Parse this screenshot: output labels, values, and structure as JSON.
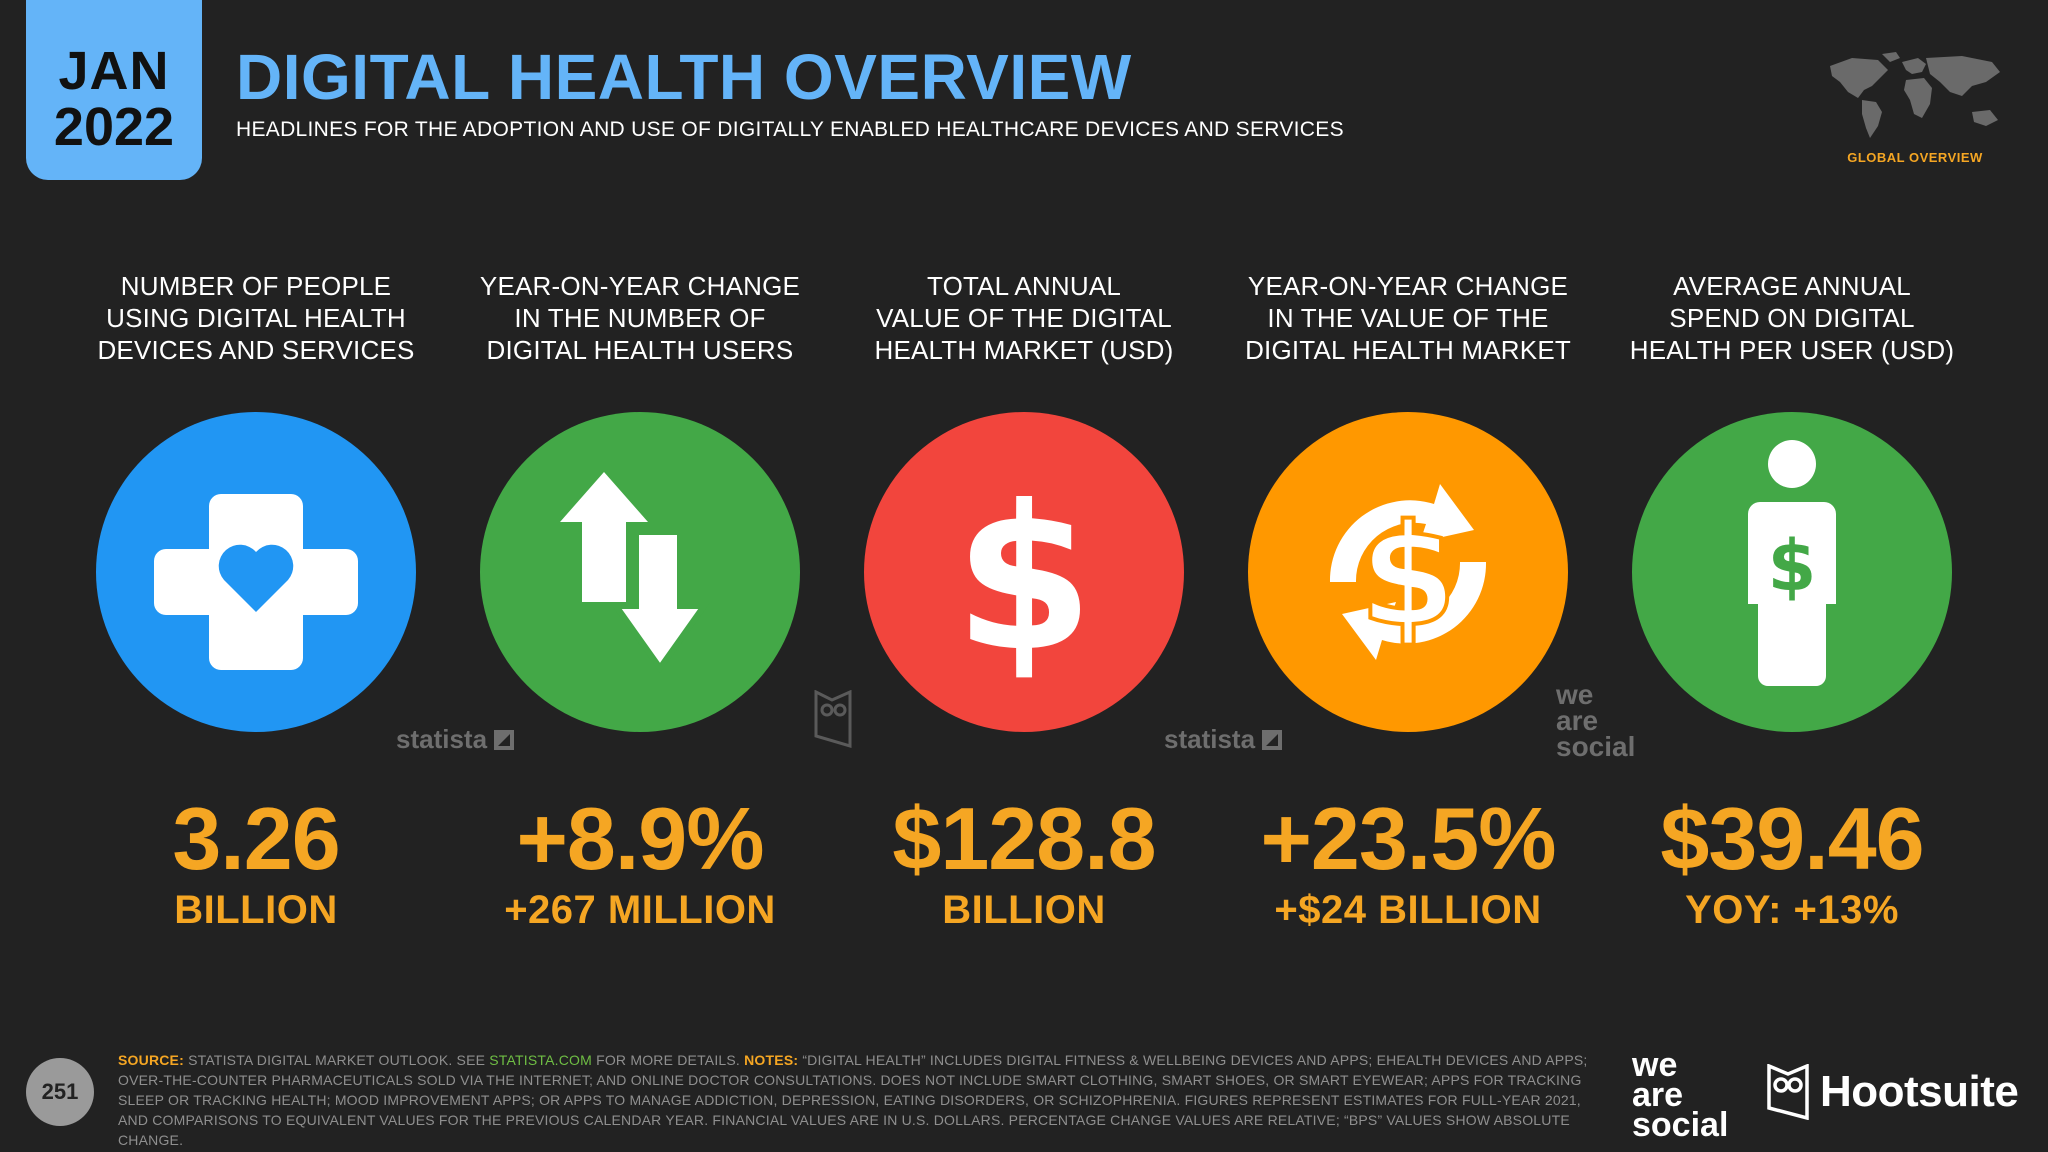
{
  "header": {
    "date_month": "JAN",
    "date_year": "2022",
    "title": "DIGITAL HEALTH OVERVIEW",
    "subtitle": "HEADLINES FOR THE ADOPTION AND USE OF DIGITALLY ENABLED HEALTHCARE DEVICES AND SERVICES",
    "map_caption": "GLOBAL OVERVIEW"
  },
  "colors": {
    "background": "#222222",
    "accent_blue": "#64b4f8",
    "accent_orange": "#f5a623",
    "circle_blue": "#2196f3",
    "circle_green": "#43a847",
    "circle_red": "#f2453d",
    "circle_orange": "#ff9800"
  },
  "metrics": [
    {
      "label_lines": [
        "NUMBER OF PEOPLE",
        "USING DIGITAL HEALTH",
        "DEVICES AND SERVICES"
      ],
      "value": "3.26",
      "sub": "BILLION",
      "icon": "medical-cross-heart-icon",
      "color": "#2196f3"
    },
    {
      "label_lines": [
        "YEAR-ON-YEAR CHANGE",
        "IN THE NUMBER OF",
        "DIGITAL HEALTH USERS"
      ],
      "value": "+8.9%",
      "sub": "+267 MILLION",
      "icon": "up-down-arrows-icon",
      "color": "#43a847"
    },
    {
      "label_lines": [
        "TOTAL ANNUAL",
        "VALUE OF THE DIGITAL",
        "HEALTH MARKET (USD)"
      ],
      "value": "$128.8",
      "sub": "BILLION",
      "icon": "dollar-sign-icon",
      "color": "#f2453d"
    },
    {
      "label_lines": [
        "YEAR-ON-YEAR CHANGE",
        "IN THE VALUE OF THE",
        "DIGITAL HEALTH MARKET"
      ],
      "value": "+23.5%",
      "sub": "+$24 BILLION",
      "icon": "dollar-cycle-icon",
      "color": "#ff9800"
    },
    {
      "label_lines": [
        "AVERAGE ANNUAL",
        "SPEND ON DIGITAL",
        "HEALTH PER USER (USD)"
      ],
      "value": "$39.46",
      "sub": "YOY: +13%",
      "icon": "person-dollar-icon",
      "color": "#43a847"
    }
  ],
  "watermarks": {
    "statista": "statista",
    "we": "we",
    "are": "are",
    "social": "social"
  },
  "footer": {
    "page_number": "251",
    "source_label": "SOURCE:",
    "source_text": "STATISTA DIGITAL MARKET OUTLOOK. SEE",
    "source_link": "STATISTA.COM",
    "source_tail": "FOR MORE DETAILS.",
    "notes_label": "NOTES:",
    "notes_text": "“DIGITAL HEALTH” INCLUDES DIGITAL FITNESS & WELLBEING DEVICES AND APPS; EHEALTH DEVICES AND APPS; OVER-THE-COUNTER PHARMACEUTICALS SOLD VIA THE INTERNET; AND ONLINE DOCTOR CONSULTATIONS. DOES NOT INCLUDE SMART CLOTHING, SMART SHOES, OR SMART EYEWEAR; APPS FOR TRACKING SLEEP OR TRACKING HEALTH; MOOD IMPROVEMENT APPS; OR APPS TO MANAGE ADDICTION, DEPRESSION, EATING DISORDERS, OR SCHIZOPHRENIA. FIGURES REPRESENT ESTIMATES FOR FULL-YEAR 2021, AND COMPARISONS TO EQUIVALENT VALUES FOR THE PREVIOUS CALENDAR YEAR. FINANCIAL VALUES ARE IN U.S. DOLLARS. PERCENTAGE CHANGE VALUES ARE RELATIVE; “BPS” VALUES SHOW ABSOLUTE CHANGE.",
    "brand_we": "we",
    "brand_are": "are",
    "brand_social": "social",
    "brand_hootsuite": "Hootsuite"
  }
}
